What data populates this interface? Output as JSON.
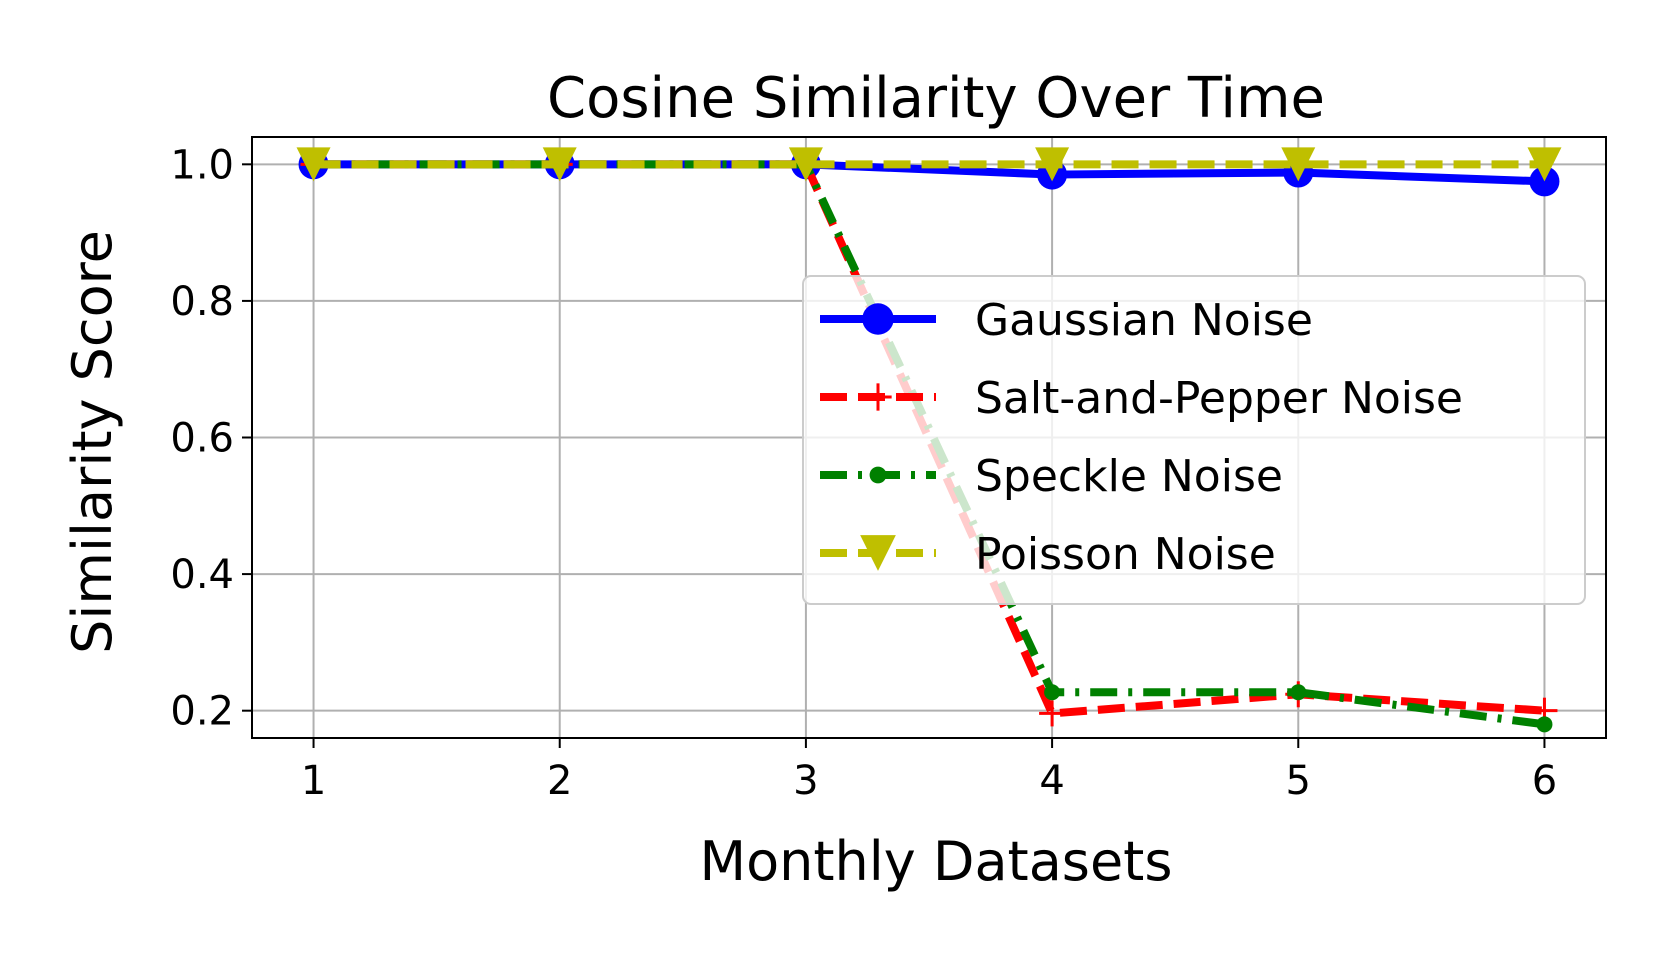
{
  "chart_data": {
    "type": "line",
    "title": "Cosine Similarity Over Time",
    "xlabel": "Monthly Datasets",
    "ylabel": "Similarity Score",
    "x": [
      1,
      2,
      3,
      4,
      5,
      6
    ],
    "xticks": [
      "1",
      "2",
      "3",
      "4",
      "5",
      "6"
    ],
    "yticks": [
      "0.2",
      "0.4",
      "0.6",
      "0.8",
      "1.0"
    ],
    "xlim": [
      0.75,
      6.25
    ],
    "ylim": [
      0.16,
      1.04
    ],
    "grid": true,
    "legend_position": "center-right",
    "series": [
      {
        "name": "Gaussian Noise",
        "values": [
          1.0,
          1.0,
          1.0,
          0.985,
          0.988,
          0.975
        ],
        "color": "#0000ff",
        "marker": "circle",
        "linestyle": "solid"
      },
      {
        "name": "Salt-and-Pepper Noise",
        "values": [
          1.0,
          1.0,
          1.0,
          0.196,
          0.224,
          0.2
        ],
        "color": "#ff0000",
        "marker": "plus",
        "linestyle": "dashed"
      },
      {
        "name": "Speckle Noise",
        "values": [
          1.0,
          1.0,
          1.0,
          0.227,
          0.227,
          0.18
        ],
        "color": "#008000",
        "marker": "point",
        "linestyle": "dashdot"
      },
      {
        "name": "Poisson Noise",
        "values": [
          1.0,
          1.0,
          1.0,
          1.0,
          1.0,
          1.0
        ],
        "color": "#bfbf00",
        "marker": "triangle-down",
        "linestyle": "dashed"
      }
    ]
  }
}
